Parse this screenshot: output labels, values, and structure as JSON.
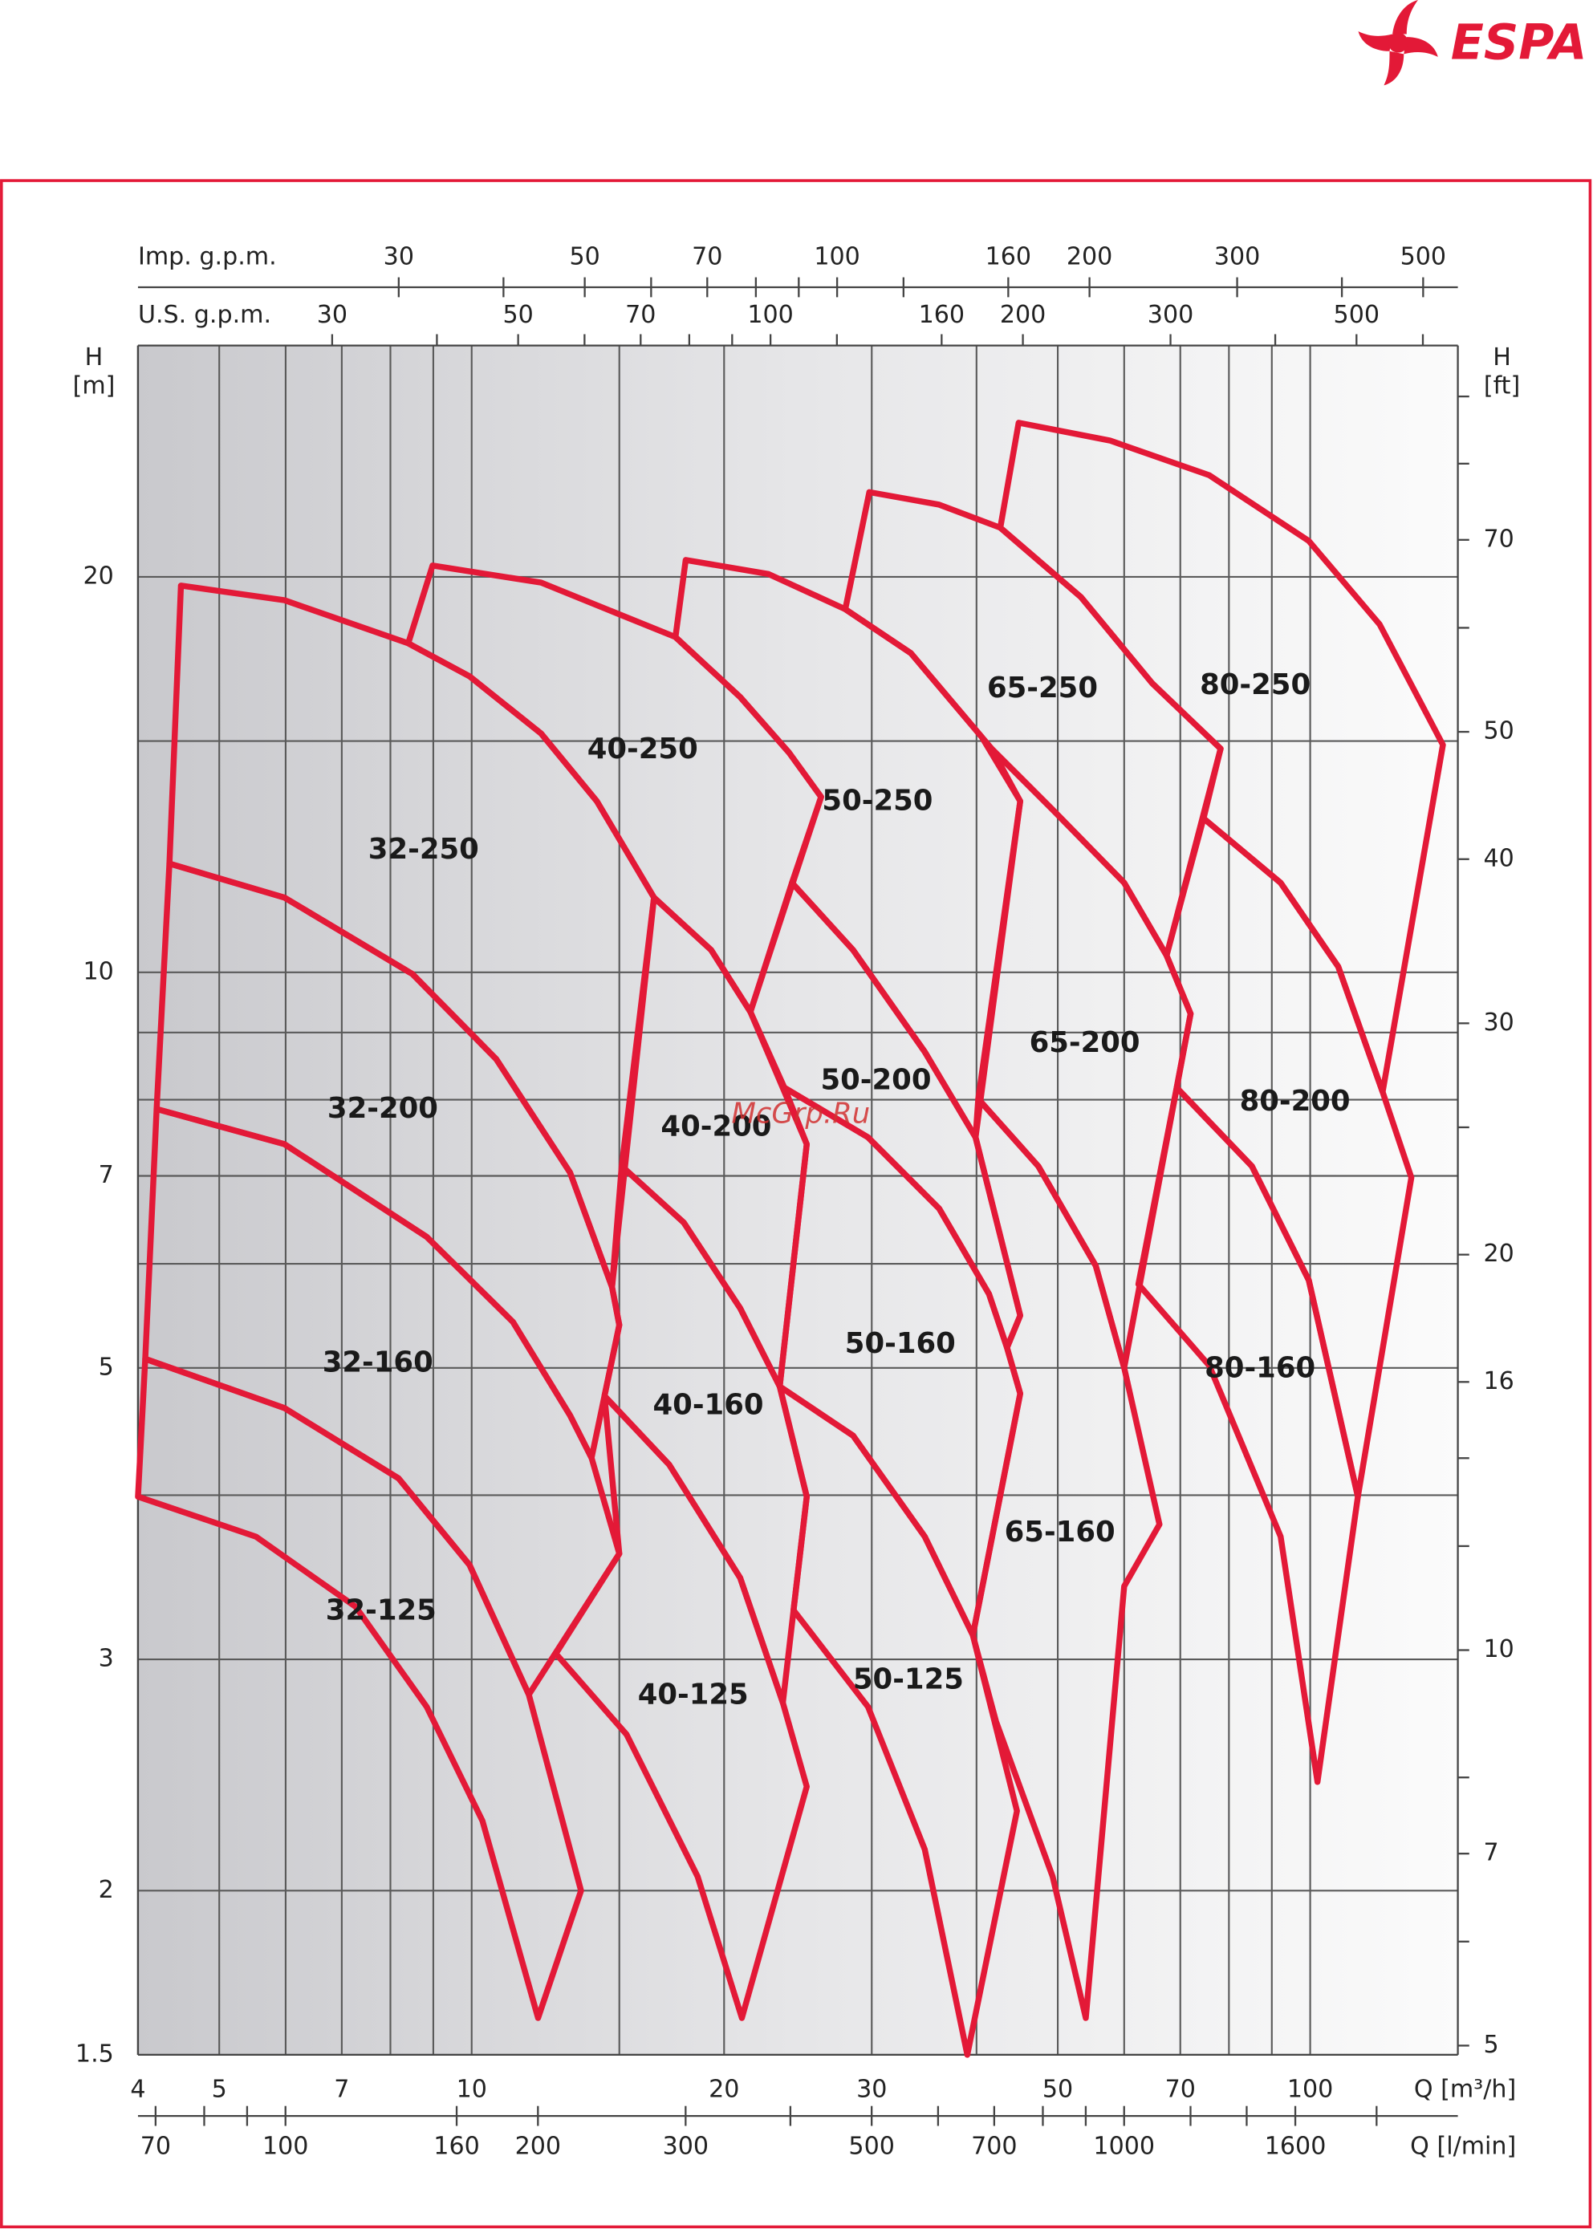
{
  "brand": "ESPA",
  "watermark": "McGrp.Ru",
  "chart_data": {
    "type": "region",
    "color": "#e31937",
    "xlabel": "Q [m³/h]",
    "xscale": "log",
    "xlim": [
      4,
      150
    ],
    "xticks": [
      4,
      5,
      7,
      10,
      20,
      30,
      50,
      70,
      100
    ],
    "xgrid": [
      6,
      8,
      9,
      15,
      40,
      60,
      80,
      90
    ],
    "ylabel": "H",
    "yunit": "[m]",
    "yscale": "log",
    "ylim": [
      1.5,
      30
    ],
    "yticks": [
      1.5,
      2,
      3,
      5,
      7,
      10,
      20
    ],
    "ygrid": [
      4,
      6,
      8,
      9,
      15
    ],
    "y2label": "H",
    "y2unit": "[ft]",
    "y2lim": [
      4.92,
      98.4
    ],
    "y2ticks": [
      5,
      7,
      10,
      16,
      20,
      30,
      40,
      50,
      70
    ],
    "y2minor": [
      6,
      8,
      12,
      14,
      25,
      60,
      80,
      90
    ],
    "bottom2": {
      "label": "Q [l/min]",
      "lim": [
        66.7,
        2500
      ],
      "ticks": [
        70,
        100,
        160,
        200,
        300,
        500,
        700,
        1000,
        1600
      ],
      "minor": [
        80,
        90,
        400,
        600,
        800,
        900,
        1200,
        1400,
        2000
      ]
    },
    "top1": {
      "label": "U.S. g.p.m.",
      "lim": [
        17.6,
        660.5
      ],
      "ticks": [
        30,
        50,
        70,
        100,
        160,
        200,
        300,
        500
      ],
      "minor": [
        40,
        60,
        80,
        90,
        120,
        400,
        600
      ]
    },
    "top2": {
      "label": "Imp. g.p.m.",
      "lim": [
        14.66,
        550
      ],
      "ticks": [
        30,
        50,
        70,
        100,
        160,
        200,
        300,
        500
      ],
      "minor": [
        40,
        60,
        80,
        90,
        120,
        400
      ]
    },
    "series": [
      {
        "name": "32-250",
        "x": [
          4.5,
          5.98,
          8.4,
          9.94,
          12.1,
          14.1,
          16.5,
          14.7,
          13.1,
          10.7,
          8.5,
          5.98,
          4.36
        ],
        "y": [
          19.7,
          19.2,
          17.8,
          16.8,
          15.2,
          13.5,
          11.4,
          5.76,
          7.04,
          8.59,
          9.97,
          11.4,
          12.1
        ]
      },
      {
        "name": "32-200",
        "x": [
          4.36,
          5.98,
          8.5,
          10.7,
          13.1,
          14.7,
          15.0,
          13.9,
          13.1,
          11.2,
          8.84,
          5.98,
          4.21
        ],
        "y": [
          12.1,
          11.4,
          9.97,
          8.59,
          7.04,
          5.76,
          5.39,
          4.27,
          4.6,
          5.42,
          6.29,
          7.4,
          7.87
        ]
      },
      {
        "name": "32-160",
        "x": [
          4.21,
          5.98,
          8.84,
          11.2,
          13.1,
          13.9,
          15.0,
          11.7,
          9.94,
          8.18,
          5.98,
          4.08
        ],
        "y": [
          7.87,
          7.4,
          6.29,
          5.42,
          4.6,
          4.27,
          3.61,
          2.82,
          3.54,
          4.12,
          4.66,
          5.08
        ]
      },
      {
        "name": "32-125",
        "x": [
          4.08,
          5.98,
          8.18,
          9.94,
          11.7,
          13.5,
          12.0,
          10.3,
          8.84,
          7.27,
          5.53,
          4.0
        ],
        "y": [
          5.08,
          4.66,
          4.12,
          3.54,
          2.82,
          2.0,
          1.6,
          2.26,
          2.76,
          3.29,
          3.72,
          3.99
        ]
      },
      {
        "name": "40-250",
        "x": [
          8.4,
          8.98,
          12.1,
          17.5,
          20.9,
          23.9,
          26.1,
          21.5,
          19.3,
          16.5,
          14.1,
          12.1,
          9.94
        ],
        "y": [
          17.8,
          20.4,
          19.8,
          18.0,
          16.2,
          14.7,
          13.6,
          9.33,
          10.4,
          11.4,
          13.5,
          15.2,
          16.8
        ]
      },
      {
        "name": "40-200",
        "x": [
          16.5,
          19.3,
          21.5,
          23.3,
          25.1,
          23.3,
          20.9,
          17.9,
          15.1
        ],
        "y": [
          11.4,
          10.4,
          9.33,
          8.27,
          7.4,
          4.84,
          5.55,
          6.45,
          7.12
        ]
      },
      {
        "name": "40-160",
        "x": [
          15.1,
          17.9,
          20.9,
          23.3,
          25.1,
          23.5,
          20.9,
          17.2,
          14.4,
          15.0,
          14.7
        ],
        "y": [
          7.12,
          6.45,
          5.55,
          4.84,
          3.99,
          2.78,
          3.46,
          4.22,
          4.76,
          5.39,
          5.76
        ]
      },
      {
        "name": "40-125",
        "x": [
          14.4,
          17.2,
          20.9,
          23.5,
          25.1,
          21.0,
          18.6,
          15.3,
          12.6,
          15.0
        ],
        "y": [
          4.76,
          4.22,
          3.46,
          2.78,
          2.4,
          1.6,
          2.05,
          2.63,
          3.03,
          3.61
        ]
      },
      {
        "name": "50-250",
        "x": [
          17.5,
          18.0,
          22.6,
          27.9,
          33.4,
          40.6,
          45.1,
          39.9,
          34.7,
          28.5,
          24.1,
          26.1,
          23.9,
          20.9
        ],
        "y": [
          18.0,
          20.6,
          20.1,
          18.9,
          17.5,
          15.1,
          13.5,
          7.49,
          8.7,
          10.4,
          11.7,
          13.6,
          14.7,
          16.2
        ]
      },
      {
        "name": "50-200",
        "x": [
          24.1,
          28.5,
          34.7,
          39.9,
          45.1,
          43.5,
          41.4,
          36.1,
          29.7,
          23.6,
          21.5
        ],
        "y": [
          11.7,
          10.4,
          8.7,
          7.49,
          5.48,
          5.18,
          5.69,
          6.61,
          7.49,
          8.17,
          9.33
        ]
      },
      {
        "name": "50-160",
        "x": [
          23.6,
          29.7,
          36.1,
          41.4,
          43.5,
          45.1,
          39.6,
          34.7,
          28.5,
          23.3,
          25.1
        ],
        "y": [
          8.17,
          7.49,
          6.61,
          5.69,
          5.18,
          4.78,
          3.13,
          3.72,
          4.44,
          4.84,
          7.4
        ]
      },
      {
        "name": "50-125",
        "x": [
          23.3,
          28.5,
          34.7,
          39.6,
          44.7,
          39.0,
          34.7,
          29.7,
          24.2,
          25.1
        ],
        "y": [
          4.84,
          4.44,
          3.72,
          3.13,
          2.3,
          1.5,
          2.15,
          2.76,
          3.27,
          3.99
        ]
      },
      {
        "name": "65-250",
        "x": [
          27.9,
          29.8,
          36.1,
          42.7,
          53.3,
          64.8,
          78.2,
          67.4,
          60.0,
          49.3,
          41.7,
          33.4
        ],
        "y": [
          18.9,
          23.2,
          22.7,
          21.8,
          19.3,
          16.6,
          14.8,
          10.3,
          11.7,
          13.3,
          14.8,
          17.5
        ]
      },
      {
        "name": "65-200",
        "x": [
          41.7,
          49.3,
          60.0,
          67.4,
          72.0,
          60.0,
          55.5,
          47.4,
          40.2,
          45.1
        ],
        "y": [
          14.8,
          13.3,
          11.7,
          10.3,
          9.3,
          5.0,
          5.98,
          7.12,
          8.01,
          13.5
        ]
      },
      {
        "name": "65-160",
        "x": [
          40.2,
          47.4,
          55.5,
          60.0,
          66.1,
          60.0,
          54.0,
          49.3,
          42.2,
          39.6,
          45.1,
          43.5,
          45.1,
          39.9
        ],
        "y": [
          8.01,
          7.12,
          5.98,
          5.0,
          3.8,
          3.41,
          1.6,
          2.05,
          2.69,
          3.13,
          4.78,
          5.18,
          5.48,
          7.49
        ]
      },
      {
        "name": "80-250",
        "x": [
          42.7,
          44.9,
          57.7,
          75.8,
          99.6,
          121,
          144,
          122,
          108,
          92.2,
          74.6,
          78.2,
          64.8,
          53.3
        ],
        "y": [
          21.8,
          26.2,
          25.4,
          23.9,
          21.3,
          18.4,
          14.9,
          8.11,
          10.1,
          11.7,
          13.1,
          14.8,
          16.6,
          19.3
        ]
      },
      {
        "name": "80-200",
        "x": [
          74.6,
          92.2,
          108,
          122,
          132,
          114,
          99.6,
          85.2,
          69.3,
          72.0,
          67.4
        ],
        "y": [
          13.1,
          11.7,
          10.1,
          8.11,
          6.98,
          3.99,
          5.83,
          7.12,
          8.17,
          9.3,
          10.3
        ]
      },
      {
        "name": "80-160",
        "x": [
          69.3,
          85.2,
          99.6,
          114,
          102,
          92.2,
          75.8,
          62.4
        ],
        "y": [
          8.17,
          7.12,
          5.83,
          3.99,
          2.42,
          3.72,
          5.02,
          5.79
        ]
      }
    ]
  }
}
